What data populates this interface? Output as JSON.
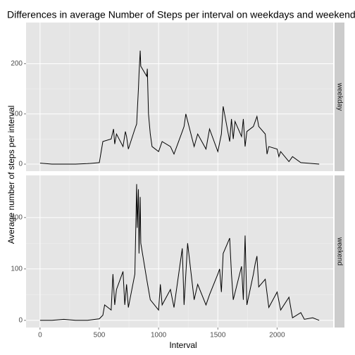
{
  "chart_data": {
    "type": "line",
    "title": "Differences in average Number of Steps per interval on weekdays and weekends",
    "xlabel": "Interval",
    "ylabel": "Average number of steps per interval",
    "facet": true,
    "xlim": [
      -118,
      2473
    ],
    "xticks": [
      0,
      500,
      1000,
      1500,
      2000
    ],
    "ylim": [
      -14,
      282
    ],
    "yticks": [
      0,
      100,
      200
    ],
    "grid": true,
    "series": [
      {
        "name": "weekday",
        "color": "#000000",
        "x": [
          0,
          100,
          200,
          300,
          400,
          500,
          530,
          600,
          620,
          630,
          645,
          700,
          720,
          730,
          745,
          800,
          815,
          830,
          835,
          845,
          850,
          900,
          905,
          915,
          930,
          945,
          1000,
          1030,
          1100,
          1130,
          1200,
          1215,
          1230,
          1300,
          1330,
          1400,
          1430,
          1500,
          1530,
          1545,
          1600,
          1615,
          1630,
          1645,
          1700,
          1715,
          1730,
          1745,
          1800,
          1830,
          1845,
          1900,
          1915,
          1930,
          2000,
          2015,
          2030,
          2100,
          2130,
          2200,
          2300,
          2355
        ],
        "values": [
          2,
          0,
          0,
          0,
          1,
          3,
          45,
          50,
          70,
          40,
          60,
          35,
          65,
          55,
          30,
          70,
          80,
          150,
          180,
          226,
          195,
          175,
          190,
          100,
          60,
          35,
          25,
          45,
          35,
          20,
          65,
          75,
          100,
          35,
          60,
          30,
          70,
          25,
          60,
          115,
          45,
          90,
          50,
          85,
          55,
          90,
          35,
          65,
          75,
          95,
          75,
          60,
          20,
          35,
          30,
          15,
          25,
          5,
          15,
          3,
          1,
          0
        ]
      },
      {
        "name": "weekend",
        "color": "#000000",
        "x": [
          0,
          100,
          200,
          300,
          400,
          500,
          530,
          545,
          600,
          615,
          630,
          645,
          700,
          715,
          730,
          745,
          800,
          815,
          820,
          830,
          835,
          845,
          850,
          900,
          915,
          930,
          1000,
          1015,
          1030,
          1100,
          1130,
          1200,
          1215,
          1245,
          1300,
          1330,
          1400,
          1430,
          1500,
          1515,
          1530,
          1545,
          1600,
          1615,
          1630,
          1700,
          1715,
          1730,
          1745,
          1800,
          1815,
          1830,
          1845,
          1900,
          1930,
          2000,
          2030,
          2100,
          2130,
          2200,
          2230,
          2300,
          2355
        ],
        "values": [
          0,
          0,
          2,
          0,
          0,
          3,
          10,
          30,
          20,
          90,
          30,
          60,
          95,
          30,
          70,
          25,
          90,
          265,
          180,
          255,
          130,
          240,
          150,
          80,
          60,
          40,
          20,
          70,
          30,
          60,
          25,
          140,
          30,
          150,
          40,
          70,
          30,
          50,
          90,
          100,
          55,
          130,
          160,
          90,
          40,
          105,
          40,
          165,
          30,
          90,
          110,
          125,
          65,
          80,
          25,
          55,
          20,
          45,
          5,
          15,
          2,
          5,
          0
        ]
      }
    ]
  }
}
